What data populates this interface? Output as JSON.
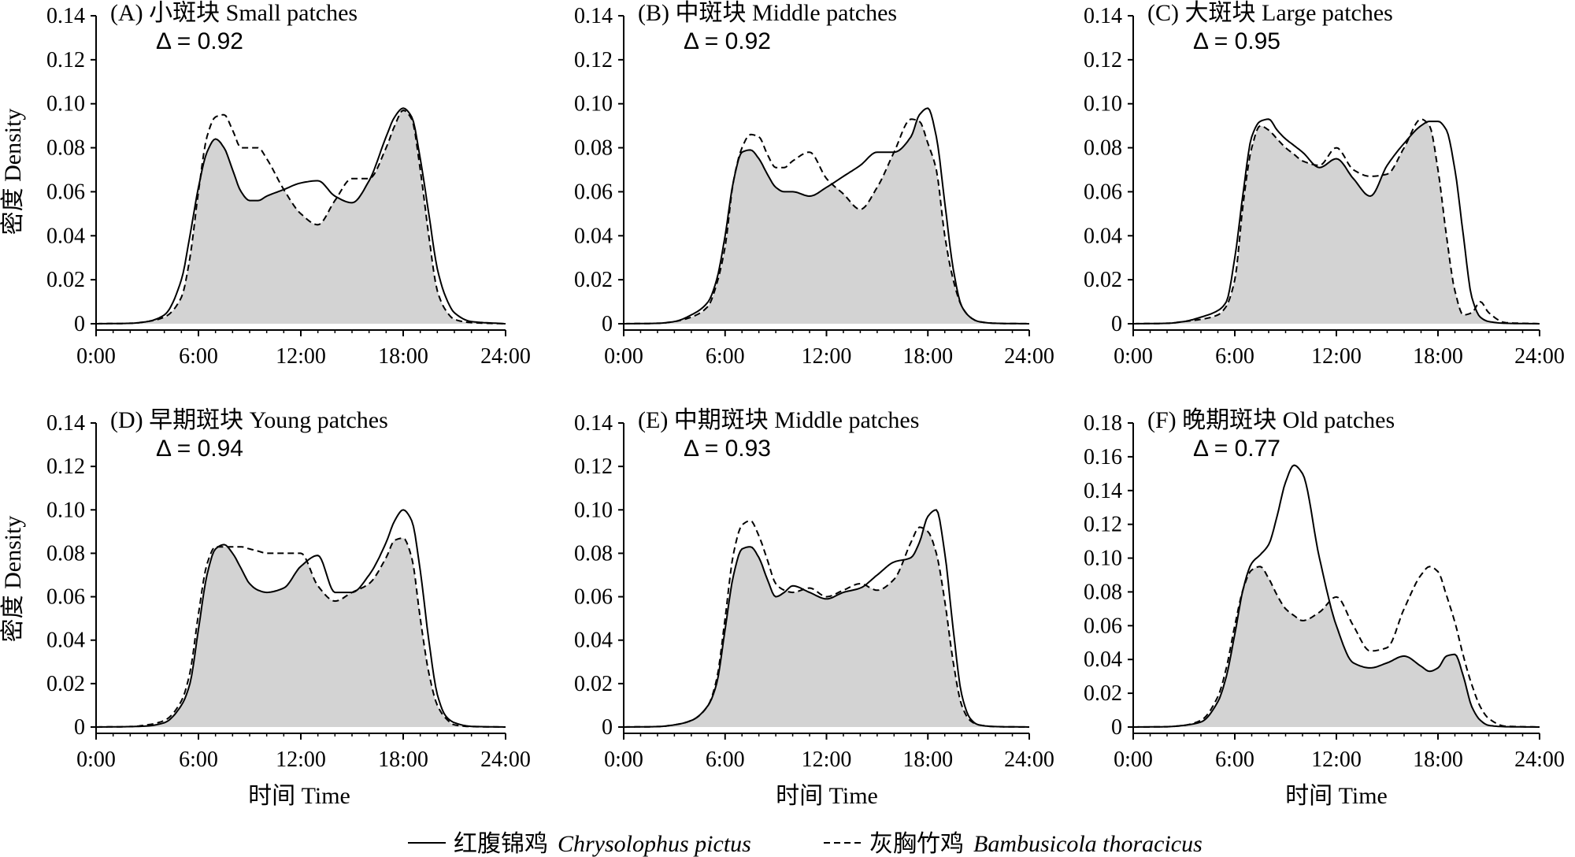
{
  "x_axis_label": "时间 Time",
  "y_axis_label": "密度 Density",
  "legend": [
    {
      "name": "红腹锦鸡",
      "latin": "Chrysolophus pictus",
      "style": "solid"
    },
    {
      "name": "灰胸竹鸡",
      "latin": "Bambusicola thoracicus",
      "style": "dashed"
    }
  ],
  "colors": {
    "overlap_fill": "#d3d3d3",
    "line": "#000000"
  },
  "chart_data": [
    {
      "type": "area",
      "panel": "A",
      "title": "(A) 小斑块 Small patches",
      "delta": "Δ = 0.92",
      "xlim": [
        0,
        24
      ],
      "ylim": [
        0,
        0.14
      ],
      "x_ticks": [
        "0:00",
        "6:00",
        "12:00",
        "18:00",
        "24:00"
      ],
      "y_ticks": [
        "0",
        "0.02",
        "0.04",
        "0.06",
        "0.08",
        "0.10",
        "0.12",
        "0.14"
      ],
      "series": [
        {
          "name": "红腹锦鸡 Chrysolophus pictus",
          "style": "solid",
          "x": [
            0,
            2,
            3,
            4,
            5,
            5.5,
            6,
            6.5,
            7,
            7.5,
            8,
            8.5,
            9,
            9.5,
            10,
            11,
            12,
            13,
            14,
            15,
            16,
            17,
            17.5,
            18,
            18.5,
            19,
            19.5,
            20,
            20.5,
            21,
            22,
            24
          ],
          "y": [
            0,
            0.0002,
            0.001,
            0.004,
            0.02,
            0.04,
            0.062,
            0.078,
            0.084,
            0.08,
            0.07,
            0.06,
            0.056,
            0.056,
            0.058,
            0.061,
            0.064,
            0.065,
            0.058,
            0.055,
            0.065,
            0.085,
            0.094,
            0.098,
            0.094,
            0.075,
            0.05,
            0.025,
            0.012,
            0.005,
            0.001,
            0
          ]
        },
        {
          "name": "灰胸竹鸡 Bambusicola thoracicus",
          "style": "dashed",
          "x": [
            0,
            2,
            3,
            4,
            5,
            5.5,
            6,
            6.5,
            7,
            7.5,
            8,
            8.5,
            9,
            9.5,
            10,
            11,
            12,
            13,
            14,
            15,
            16,
            17,
            17.5,
            18,
            18.5,
            19,
            19.5,
            20,
            20.5,
            21,
            22,
            24
          ],
          "y": [
            0,
            0.0002,
            0.001,
            0.003,
            0.012,
            0.03,
            0.06,
            0.085,
            0.094,
            0.095,
            0.088,
            0.08,
            0.08,
            0.08,
            0.075,
            0.061,
            0.05,
            0.045,
            0.056,
            0.066,
            0.066,
            0.08,
            0.09,
            0.097,
            0.093,
            0.07,
            0.04,
            0.015,
            0.006,
            0.002,
            0.0005,
            0
          ]
        }
      ]
    },
    {
      "type": "area",
      "panel": "B",
      "title": "(B) 中斑块 Middle patches",
      "delta": "Δ = 0.92",
      "xlim": [
        0,
        24
      ],
      "ylim": [
        0,
        0.14
      ],
      "x_ticks": [
        "0:00",
        "6:00",
        "12:00",
        "18:00",
        "24:00"
      ],
      "y_ticks": [
        "0",
        "0.02",
        "0.04",
        "0.06",
        "0.08",
        "0.10",
        "0.12",
        "0.14"
      ],
      "series": [
        {
          "name": "红腹锦鸡 Chrysolophus pictus",
          "style": "solid",
          "x": [
            0,
            2,
            3,
            4,
            5,
            5.5,
            6,
            6.5,
            7,
            7.5,
            8,
            8.5,
            9,
            9.5,
            10,
            11,
            12,
            13,
            14,
            15,
            16,
            17,
            17.5,
            18,
            18.5,
            19,
            19.5,
            20,
            20.5,
            21,
            22,
            24
          ],
          "y": [
            0,
            0.0002,
            0.001,
            0.004,
            0.01,
            0.02,
            0.04,
            0.065,
            0.078,
            0.079,
            0.075,
            0.068,
            0.062,
            0.06,
            0.06,
            0.058,
            0.062,
            0.067,
            0.072,
            0.078,
            0.078,
            0.085,
            0.095,
            0.098,
            0.085,
            0.055,
            0.025,
            0.008,
            0.003,
            0.001,
            0.0002,
            0
          ]
        },
        {
          "name": "灰胸竹鸡 Bambusicola thoracicus",
          "style": "dashed",
          "x": [
            0,
            2,
            3,
            4,
            5,
            5.5,
            6,
            6.5,
            7,
            7.5,
            8,
            8.5,
            9,
            9.5,
            10,
            11,
            12,
            13,
            14,
            15,
            16,
            17,
            17.5,
            18,
            18.5,
            19,
            19.5,
            20,
            20.5,
            21,
            22,
            24
          ],
          "y": [
            0,
            0.0002,
            0.001,
            0.003,
            0.008,
            0.018,
            0.035,
            0.065,
            0.08,
            0.086,
            0.085,
            0.077,
            0.071,
            0.071,
            0.074,
            0.078,
            0.066,
            0.059,
            0.052,
            0.062,
            0.078,
            0.093,
            0.092,
            0.082,
            0.07,
            0.04,
            0.02,
            0.008,
            0.003,
            0.001,
            0.0002,
            0
          ]
        }
      ]
    },
    {
      "type": "area",
      "panel": "C",
      "title": "(C) 大斑块 Large patches",
      "delta": "Δ = 0.95",
      "xlim": [
        0,
        24
      ],
      "ylim": [
        0,
        0.14
      ],
      "x_ticks": [
        "0:00",
        "6:00",
        "12:00",
        "18:00",
        "24:00"
      ],
      "y_ticks": [
        "0",
        "0.02",
        "0.04",
        "0.06",
        "0.08",
        "0.10",
        "0.12",
        "0.14"
      ],
      "series": [
        {
          "name": "红腹锦鸡 Chrysolophus pictus",
          "style": "solid",
          "x": [
            0,
            2,
            3,
            4,
            5,
            5.5,
            6,
            6.5,
            7,
            7.5,
            8,
            8.5,
            9,
            9.5,
            10,
            11,
            12,
            13,
            14,
            15,
            16,
            17,
            17.5,
            18,
            18.5,
            19,
            19.5,
            20,
            20.5,
            21,
            22,
            24
          ],
          "y": [
            0,
            0.0002,
            0.001,
            0.003,
            0.006,
            0.01,
            0.03,
            0.06,
            0.085,
            0.092,
            0.093,
            0.088,
            0.084,
            0.081,
            0.078,
            0.071,
            0.075,
            0.066,
            0.058,
            0.072,
            0.082,
            0.09,
            0.092,
            0.092,
            0.088,
            0.07,
            0.04,
            0.012,
            0.003,
            0.001,
            0.0002,
            0
          ]
        },
        {
          "name": "灰胸竹鸡 Bambusicola thoracicus",
          "style": "dashed",
          "x": [
            0,
            2,
            3,
            4,
            5,
            5.5,
            6,
            6.5,
            7,
            7.5,
            8,
            8.5,
            9,
            9.5,
            10,
            11,
            12,
            13,
            14,
            15,
            16,
            17,
            17.5,
            18,
            18.5,
            19,
            19.5,
            20,
            20.5,
            21,
            22,
            24
          ],
          "y": [
            0,
            0.0002,
            0.001,
            0.002,
            0.004,
            0.008,
            0.02,
            0.055,
            0.08,
            0.09,
            0.088,
            0.084,
            0.08,
            0.077,
            0.074,
            0.072,
            0.08,
            0.07,
            0.067,
            0.068,
            0.08,
            0.093,
            0.09,
            0.07,
            0.04,
            0.015,
            0.004,
            0.005,
            0.01,
            0.005,
            0.0005,
            0
          ]
        }
      ]
    },
    {
      "type": "area",
      "panel": "D",
      "title": "(D) 早期斑块 Young patches",
      "delta": "Δ = 0.94",
      "xlim": [
        0,
        24
      ],
      "ylim": [
        0,
        0.14
      ],
      "x_ticks": [
        "0:00",
        "6:00",
        "12:00",
        "18:00",
        "24:00"
      ],
      "y_ticks": [
        "0",
        "0.02",
        "0.04",
        "0.06",
        "0.08",
        "0.10",
        "0.12",
        "0.14"
      ],
      "series": [
        {
          "name": "红腹锦鸡 Chrysolophus pictus",
          "style": "solid",
          "x": [
            0,
            2,
            3,
            4,
            5,
            5.5,
            6,
            6.5,
            7,
            7.5,
            8,
            8.5,
            9,
            9.5,
            10,
            11,
            12,
            13,
            14,
            15,
            16,
            17,
            17.5,
            18,
            18.5,
            19,
            19.5,
            20,
            20.5,
            21,
            22,
            24
          ],
          "y": [
            0,
            0.0002,
            0.0005,
            0.002,
            0.01,
            0.02,
            0.045,
            0.07,
            0.082,
            0.084,
            0.08,
            0.073,
            0.066,
            0.063,
            0.062,
            0.064,
            0.074,
            0.079,
            0.062,
            0.062,
            0.07,
            0.085,
            0.095,
            0.1,
            0.095,
            0.072,
            0.04,
            0.015,
            0.005,
            0.002,
            0.0003,
            0
          ]
        },
        {
          "name": "灰胸竹鸡 Bambusicola thoracicus",
          "style": "dashed",
          "x": [
            0,
            2,
            3,
            4,
            5,
            5.5,
            6,
            6.5,
            7,
            7.5,
            8,
            8.5,
            9,
            9.5,
            10,
            11,
            12,
            13,
            14,
            15,
            16,
            17,
            17.5,
            18,
            18.5,
            19,
            19.5,
            20,
            20.5,
            21,
            22,
            24
          ],
          "y": [
            0,
            0.0002,
            0.001,
            0.003,
            0.012,
            0.025,
            0.052,
            0.075,
            0.083,
            0.083,
            0.083,
            0.083,
            0.082,
            0.081,
            0.08,
            0.08,
            0.08,
            0.065,
            0.058,
            0.062,
            0.066,
            0.078,
            0.086,
            0.087,
            0.078,
            0.05,
            0.025,
            0.01,
            0.004,
            0.001,
            0.0002,
            0
          ]
        }
      ]
    },
    {
      "type": "area",
      "panel": "E",
      "title": "(E) 中期斑块 Middle patches",
      "delta": "Δ = 0.93",
      "xlim": [
        0,
        24
      ],
      "ylim": [
        0,
        0.14
      ],
      "x_ticks": [
        "0:00",
        "6:00",
        "12:00",
        "18:00",
        "24:00"
      ],
      "y_ticks": [
        "0",
        "0.02",
        "0.04",
        "0.06",
        "0.08",
        "0.10",
        "0.12",
        "0.14"
      ],
      "series": [
        {
          "name": "红腹锦鸡 Chrysolophus pictus",
          "style": "solid",
          "x": [
            0,
            2,
            3,
            4,
            5,
            5.5,
            6,
            6.5,
            7,
            7.5,
            8,
            8.5,
            9,
            9.5,
            10,
            11,
            12,
            13,
            14,
            15,
            16,
            17,
            17.5,
            18,
            18.5,
            19,
            19.5,
            20,
            20.5,
            21,
            22,
            24
          ],
          "y": [
            0,
            0.0002,
            0.001,
            0.003,
            0.01,
            0.02,
            0.045,
            0.07,
            0.082,
            0.083,
            0.078,
            0.068,
            0.06,
            0.062,
            0.065,
            0.062,
            0.059,
            0.062,
            0.064,
            0.07,
            0.076,
            0.078,
            0.085,
            0.097,
            0.1,
            0.08,
            0.045,
            0.015,
            0.004,
            0.001,
            0.0002,
            0
          ]
        },
        {
          "name": "灰胸竹鸡 Bambusicola thoracicus",
          "style": "dashed",
          "x": [
            0,
            2,
            3,
            4,
            5,
            5.5,
            6,
            6.5,
            7,
            7.5,
            8,
            8.5,
            9,
            9.5,
            10,
            11,
            12,
            13,
            14,
            15,
            16,
            17,
            17.5,
            18,
            18.5,
            19,
            19.5,
            20,
            20.5,
            21,
            22,
            24
          ],
          "y": [
            0,
            0.0002,
            0.001,
            0.003,
            0.01,
            0.022,
            0.05,
            0.08,
            0.093,
            0.095,
            0.088,
            0.077,
            0.066,
            0.063,
            0.062,
            0.064,
            0.06,
            0.063,
            0.066,
            0.063,
            0.068,
            0.085,
            0.092,
            0.09,
            0.08,
            0.058,
            0.03,
            0.01,
            0.003,
            0.001,
            0.0002,
            0
          ]
        }
      ]
    },
    {
      "type": "area",
      "panel": "F",
      "title": "(F) 晚期斑块 Old patches",
      "delta": "Δ = 0.77",
      "xlim": [
        0,
        24
      ],
      "ylim": [
        0,
        0.18
      ],
      "x_ticks": [
        "0:00",
        "6:00",
        "12:00",
        "18:00",
        "24:00"
      ],
      "y_ticks": [
        "0",
        "0.02",
        "0.04",
        "0.06",
        "0.08",
        "0.10",
        "0.12",
        "0.14",
        "0.16",
        "0.18"
      ],
      "series": [
        {
          "name": "红腹锦鸡 Chrysolophus pictus",
          "style": "solid",
          "x": [
            0,
            2,
            3,
            4,
            5,
            5.5,
            6,
            6.5,
            7,
            7.5,
            8,
            8.5,
            9,
            9.5,
            10,
            11,
            12,
            13,
            14,
            15,
            16,
            17,
            17.5,
            18,
            18.5,
            19,
            19.5,
            20,
            20.5,
            21,
            22,
            24
          ],
          "y": [
            0,
            0.0002,
            0.001,
            0.003,
            0.015,
            0.03,
            0.055,
            0.082,
            0.097,
            0.102,
            0.108,
            0.125,
            0.145,
            0.155,
            0.15,
            0.1,
            0.06,
            0.038,
            0.035,
            0.038,
            0.042,
            0.036,
            0.033,
            0.035,
            0.042,
            0.043,
            0.03,
            0.012,
            0.004,
            0.001,
            0.0002,
            0
          ]
        },
        {
          "name": "灰胸竹鸡 Bambusicola thoracicus",
          "style": "dashed",
          "x": [
            0,
            2,
            3,
            4,
            5,
            5.5,
            6,
            6.5,
            7,
            7.5,
            8,
            8.5,
            9,
            9.5,
            10,
            11,
            12,
            13,
            14,
            15,
            16,
            17,
            17.5,
            18,
            18.5,
            19,
            19.5,
            20,
            20.5,
            21,
            22,
            24
          ],
          "y": [
            0,
            0.0002,
            0.001,
            0.004,
            0.018,
            0.035,
            0.06,
            0.082,
            0.093,
            0.095,
            0.088,
            0.078,
            0.07,
            0.066,
            0.063,
            0.068,
            0.077,
            0.06,
            0.045,
            0.047,
            0.07,
            0.09,
            0.095,
            0.092,
            0.078,
            0.062,
            0.042,
            0.025,
            0.012,
            0.005,
            0.0005,
            0
          ]
        }
      ]
    }
  ]
}
